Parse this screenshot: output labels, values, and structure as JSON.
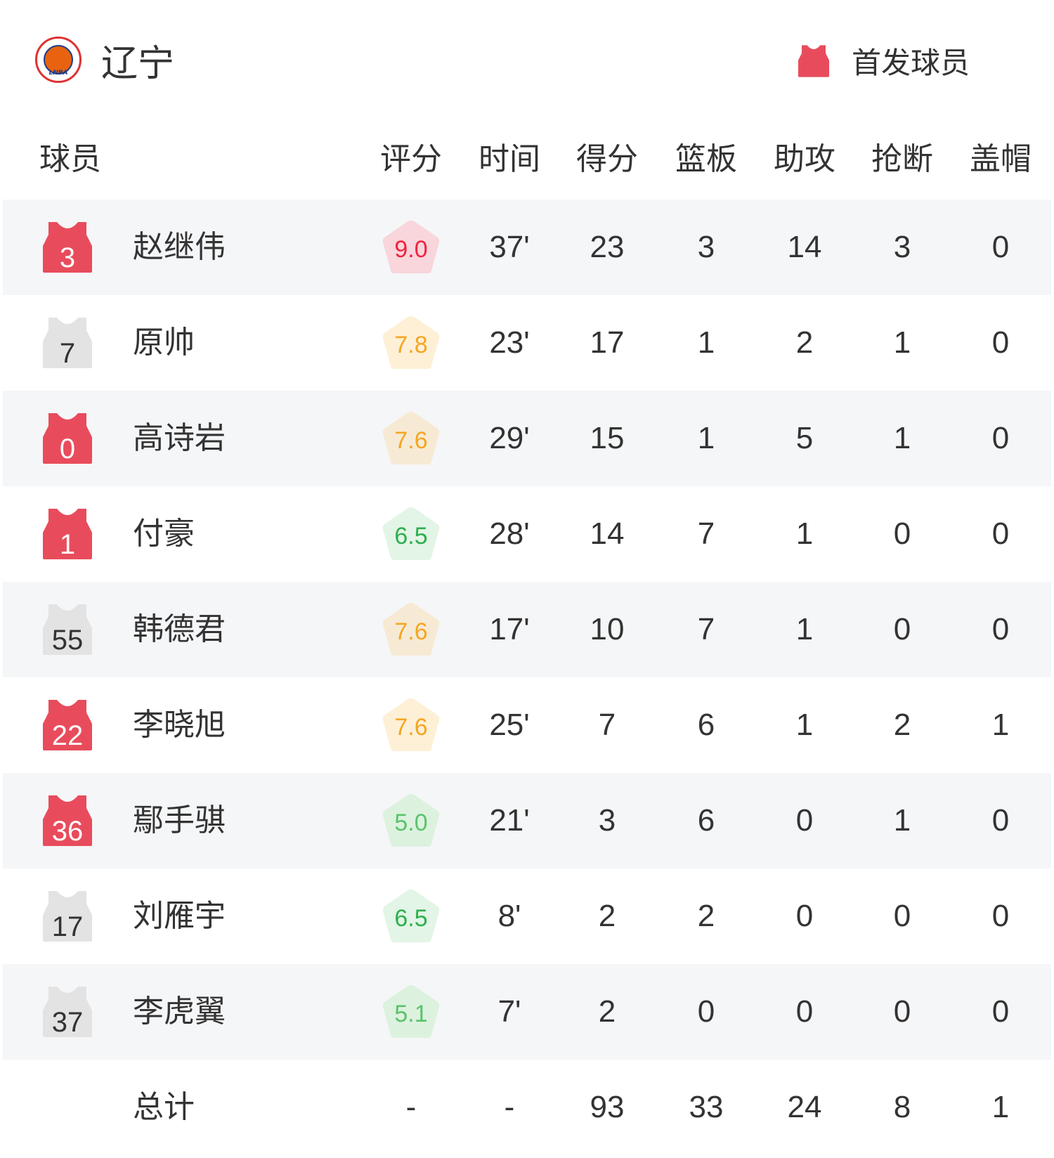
{
  "team": {
    "name": "辽宁",
    "logo_text": "LNBA"
  },
  "legend": {
    "label": "首发球员",
    "icon": "jersey-icon",
    "color": "#e84c5c"
  },
  "headers": [
    "球员",
    "评分",
    "时间",
    "得分",
    "篮板",
    "助攻",
    "抢断",
    "盖帽"
  ],
  "colors": {
    "starter": "#e84c5c",
    "bench": "#e3e3e3",
    "row_alt": "#f5f6f8"
  },
  "players": [
    {
      "number": "3",
      "name": "赵继伟",
      "starter": true,
      "rating": "9.0",
      "rating_text": "#f0233d",
      "rating_bg": "#f9d5dc",
      "min": "37'",
      "pts": "23",
      "reb": "3",
      "ast": "14",
      "stl": "3",
      "blk": "0"
    },
    {
      "number": "7",
      "name": "原帅",
      "starter": false,
      "rating": "7.8",
      "rating_text": "#f5a623",
      "rating_bg": "#fdf0d6",
      "min": "23'",
      "pts": "17",
      "reb": "1",
      "ast": "2",
      "stl": "1",
      "blk": "0"
    },
    {
      "number": "0",
      "name": "高诗岩",
      "starter": true,
      "rating": "7.6",
      "rating_text": "#f5a623",
      "rating_bg": "#f7ead4",
      "min": "29'",
      "pts": "15",
      "reb": "1",
      "ast": "5",
      "stl": "1",
      "blk": "0"
    },
    {
      "number": "1",
      "name": "付豪",
      "starter": true,
      "rating": "6.5",
      "rating_text": "#2eaf4f",
      "rating_bg": "#e3f5e6",
      "min": "28'",
      "pts": "14",
      "reb": "7",
      "ast": "1",
      "stl": "0",
      "blk": "0"
    },
    {
      "number": "55",
      "name": "韩德君",
      "starter": false,
      "rating": "7.6",
      "rating_text": "#f5a623",
      "rating_bg": "#f7ead4",
      "min": "17'",
      "pts": "10",
      "reb": "7",
      "ast": "1",
      "stl": "0",
      "blk": "0"
    },
    {
      "number": "22",
      "name": "李晓旭",
      "starter": true,
      "rating": "7.6",
      "rating_text": "#f5a623",
      "rating_bg": "#fdf0d6",
      "min": "25'",
      "pts": "7",
      "reb": "6",
      "ast": "1",
      "stl": "2",
      "blk": "1"
    },
    {
      "number": "36",
      "name": "鄢手骐",
      "starter": true,
      "rating": "5.0",
      "rating_text": "#5cc26a",
      "rating_bg": "#dcf2df",
      "min": "21'",
      "pts": "3",
      "reb": "6",
      "ast": "0",
      "stl": "1",
      "blk": "0"
    },
    {
      "number": "17",
      "name": "刘雁宇",
      "starter": false,
      "rating": "6.5",
      "rating_text": "#2eaf4f",
      "rating_bg": "#e3f5e6",
      "min": "8'",
      "pts": "2",
      "reb": "2",
      "ast": "0",
      "stl": "0",
      "blk": "0"
    },
    {
      "number": "37",
      "name": "李虎翼",
      "starter": false,
      "rating": "5.1",
      "rating_text": "#5cc26a",
      "rating_bg": "#dcf2df",
      "min": "7'",
      "pts": "2",
      "reb": "0",
      "ast": "0",
      "stl": "0",
      "blk": "0"
    }
  ],
  "total": {
    "label": "总计",
    "rating": "-",
    "min": "-",
    "pts": "93",
    "reb": "33",
    "ast": "24",
    "stl": "8",
    "blk": "1"
  }
}
